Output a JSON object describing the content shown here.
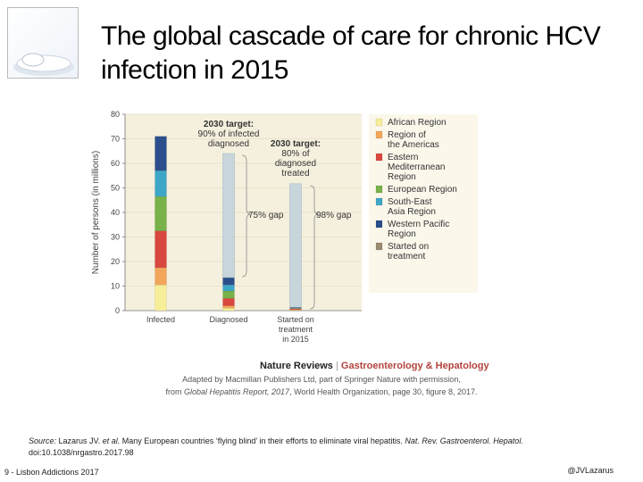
{
  "slide": {
    "title_line1": "The global cascade of care for chronic HCV",
    "title_line2": "infection in 2015",
    "credit_line1": "Adapted by Macmillan Publishers Ltd, part of Springer Nature with permission,",
    "credit_line2_prefix": "from ",
    "credit_line2_italic": "Global Hepatitis Report, 2017",
    "credit_line2_suffix": ", World Health Organization, page 30, figure 8, 2017.",
    "source_label": "Source:",
    "source_authors": " Lazarus JV. ",
    "source_etal": "et al.",
    "source_text": " Many European countries ‘flying blind’ in their efforts to eliminate viral hepatitis. ",
    "source_journal": "Nat. Rev. Gastroenterol. Hepatol.",
    "source_doi": "doi:10.1038/nrgastro.2017.98",
    "footer_left": "9 - Lisbon Addictions 2017",
    "footer_right": "@JVLazarus"
  },
  "chart_data": {
    "type": "bar",
    "stacked": true,
    "ylabel": "Number of persons (in millions)",
    "ylim": [
      0,
      80
    ],
    "yticks": [
      0,
      10,
      20,
      30,
      40,
      50,
      60,
      70,
      80
    ],
    "grid": true,
    "categories": [
      "Infected",
      "Diagnosed",
      "Started on treatment in 2015"
    ],
    "category_label_lines": [
      [
        "Infected"
      ],
      [
        "Diagnosed"
      ],
      [
        "Started on",
        "treatment",
        "in 2015"
      ]
    ],
    "series": [
      {
        "name": "African Region",
        "color": "#f7ee99",
        "values": [
          10.5,
          1.0,
          0.2
        ]
      },
      {
        "name": "Region of the Americas",
        "color": "#f2a65a",
        "values": [
          7.0,
          1.0,
          0.2
        ]
      },
      {
        "name": "Eastern Mediterranean Region",
        "color": "#d9473f",
        "values": [
          15.0,
          3.0,
          0.4
        ]
      },
      {
        "name": "European Region",
        "color": "#78b249",
        "values": [
          14.0,
          3.0,
          0.2
        ]
      },
      {
        "name": "South-East Asia Region",
        "color": "#3ea7c7",
        "values": [
          10.5,
          2.5,
          0.1
        ]
      },
      {
        "name": "Western Pacific Region",
        "color": "#2b4f8c",
        "values": [
          14.0,
          3.0,
          0.3
        ]
      },
      {
        "name": "Started on treatment",
        "color": "#9a8a70",
        "values": [
          0,
          0,
          0
        ]
      }
    ],
    "gap_values": [
      0,
      50.5,
      50.3
    ],
    "gap_color": "#c8d6dc",
    "annotations": [
      {
        "lines": [
          "2030 target:",
          "90% of infected",
          "diagnosed"
        ]
      },
      {
        "lines": [
          "2030 target:",
          "80% of",
          "diagnosed",
          "treated"
        ]
      },
      {
        "text": "75% gap"
      },
      {
        "text": "98% gap"
      }
    ],
    "legend_position": "right",
    "legend": [
      {
        "lines": [
          "African Region"
        ],
        "color": "#f7ee99"
      },
      {
        "lines": [
          "Region of",
          "the Americas"
        ],
        "color": "#f2a65a"
      },
      {
        "lines": [
          "Eastern",
          "Mediterranean",
          "Region"
        ],
        "color": "#d9473f"
      },
      {
        "lines": [
          "European Region"
        ],
        "color": "#78b249"
      },
      {
        "lines": [
          "South-East",
          "Asia Region"
        ],
        "color": "#3ea7c7"
      },
      {
        "lines": [
          "Western Pacific",
          "Region"
        ],
        "color": "#2b4f8c"
      },
      {
        "lines": [
          "Started on",
          "treatment"
        ],
        "color": "#9a8a70"
      }
    ],
    "publisher": "Nature Reviews",
    "publisher_separator": " | ",
    "publisher_section": "Gastroenterology & Hepatology"
  }
}
